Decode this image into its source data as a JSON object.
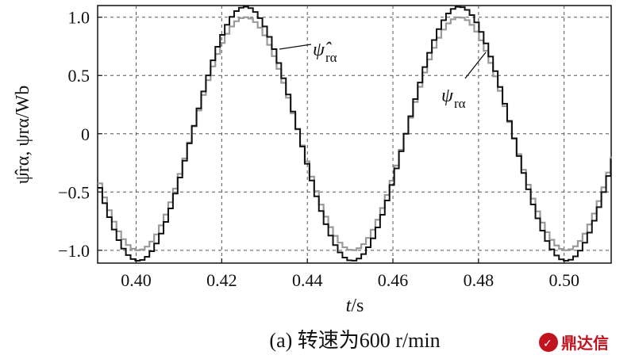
{
  "chart_data": {
    "type": "line",
    "xlabel_var": "t",
    "xlabel_unit": "/s",
    "ylabel": "ψ̂rα, ψrα/Wb",
    "xlim": [
      0.391,
      0.511
    ],
    "ylim": [
      -1.11,
      1.1
    ],
    "x_ticks": [
      0.4,
      0.42,
      0.44,
      0.46,
      0.48,
      0.5
    ],
    "x_tick_labels": [
      "0.40",
      "0.42",
      "0.44",
      "0.46",
      "0.48",
      "0.50"
    ],
    "y_ticks": [
      1.0,
      0.5,
      0,
      -0.5,
      -1.0
    ],
    "y_tick_labels": [
      "1.0",
      "0.5",
      "0",
      "−0.5",
      "−1.0"
    ],
    "grid": true,
    "series": [
      {
        "name": "ψ̂rα",
        "color": "#111111",
        "period": 0.05,
        "amplitude": 1.09,
        "peak_x": [
          0.425,
          0.475
        ],
        "trough_x": [
          0.4,
          0.45,
          0.5
        ],
        "style": "staircase"
      },
      {
        "name": "ψrα",
        "color": "#9a9a9a",
        "period": 0.05,
        "amplitude": 1.0,
        "peak_x": [
          0.425,
          0.475
        ],
        "trough_x": [
          0.4,
          0.45,
          0.5
        ],
        "style": "staircase"
      }
    ],
    "annotations": [
      {
        "text": "ψ̂",
        "sub": "rα",
        "target_series": 0
      },
      {
        "text": "ψ",
        "sub": "rα",
        "target_series": 1
      }
    ]
  },
  "caption": "(a) 转速为600 r/min",
  "logo": "鼎达信"
}
